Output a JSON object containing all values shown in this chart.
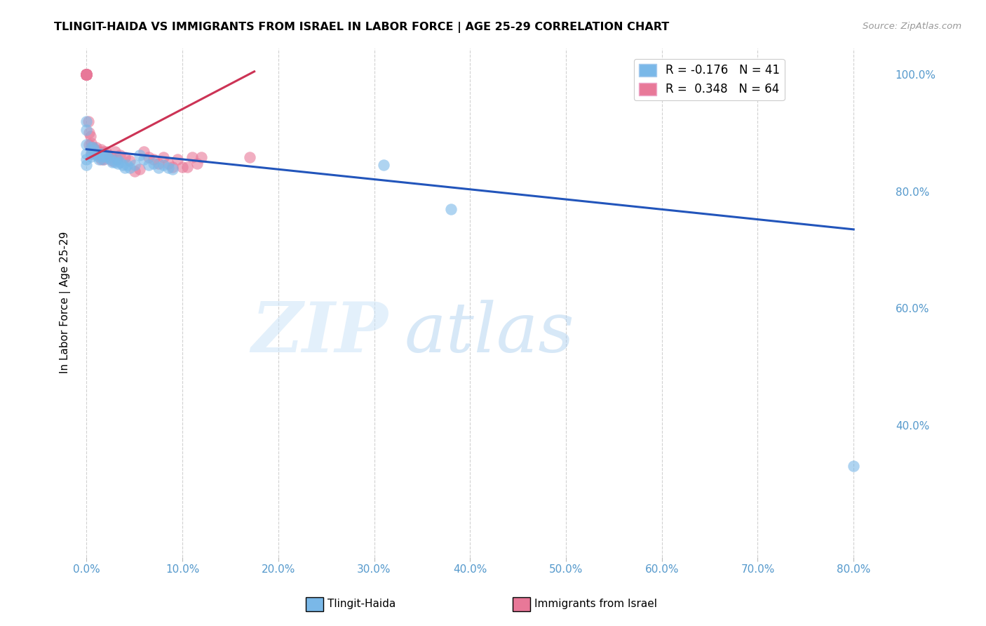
{
  "title": "TLINGIT-HAIDA VS IMMIGRANTS FROM ISRAEL IN LABOR FORCE | AGE 25-29 CORRELATION CHART",
  "source": "Source: ZipAtlas.com",
  "ylabel": "In Labor Force | Age 25-29",
  "tlingit_label": "Tlingit-Haida",
  "israel_label": "Immigrants from Israel",
  "legend_r_tlingit": "R = -0.176",
  "legend_n_tlingit": "N = 41",
  "legend_r_israel": "R =  0.348",
  "legend_n_israel": "N = 64",
  "tlingit_color": "#7ab8e8",
  "israel_color": "#e87898",
  "trendline_tlingit_color": "#2255bb",
  "trendline_israel_color": "#cc3355",
  "xlim": [
    -0.008,
    0.84
  ],
  "ylim": [
    0.175,
    1.045
  ],
  "x_ticks": [
    0.0,
    0.1,
    0.2,
    0.3,
    0.4,
    0.5,
    0.6,
    0.7,
    0.8
  ],
  "x_tick_labels": [
    "0.0%",
    "10.0%",
    "20.0%",
    "30.0%",
    "40.0%",
    "50.0%",
    "60.0%",
    "70.0%",
    "80.0%"
  ],
  "y_ticks": [
    0.4,
    0.6,
    0.8,
    1.0
  ],
  "y_tick_labels": [
    "40.0%",
    "60.0%",
    "80.0%",
    "100.0%"
  ],
  "ticks_color": "#5599cc",
  "grid_color": "#cccccc",
  "trendline_tlingit_x0": 0.0,
  "trendline_tlingit_y0": 0.872,
  "trendline_tlingit_x1": 0.8,
  "trendline_tlingit_y1": 0.735,
  "trendline_israel_x0": 0.0,
  "trendline_israel_y0": 0.855,
  "trendline_israel_x1": 0.175,
  "trendline_israel_y1": 1.005,
  "tlingit_x": [
    0.0,
    0.0,
    0.0,
    0.0,
    0.0,
    0.0,
    0.005,
    0.005,
    0.005,
    0.007,
    0.008,
    0.01,
    0.012,
    0.013,
    0.015,
    0.017,
    0.018,
    0.02,
    0.022,
    0.025,
    0.027,
    0.03,
    0.032,
    0.033,
    0.035,
    0.038,
    0.04,
    0.042,
    0.045,
    0.05,
    0.055,
    0.06,
    0.065,
    0.07,
    0.075,
    0.08,
    0.085,
    0.09,
    0.31,
    0.38,
    0.8
  ],
  "tlingit_y": [
    0.92,
    0.905,
    0.88,
    0.865,
    0.855,
    0.845,
    0.875,
    0.865,
    0.86,
    0.875,
    0.87,
    0.865,
    0.86,
    0.855,
    0.865,
    0.855,
    0.86,
    0.862,
    0.858,
    0.855,
    0.85,
    0.85,
    0.855,
    0.848,
    0.85,
    0.845,
    0.84,
    0.845,
    0.84,
    0.845,
    0.862,
    0.855,
    0.845,
    0.848,
    0.84,
    0.845,
    0.84,
    0.838,
    0.845,
    0.77,
    0.33
  ],
  "israel_x": [
    0.0,
    0.0,
    0.0,
    0.0,
    0.0,
    0.0,
    0.0,
    0.0,
    0.0,
    0.0,
    0.0,
    0.0,
    0.0,
    0.0,
    0.0,
    0.0,
    0.0,
    0.0,
    0.0,
    0.0,
    0.002,
    0.003,
    0.003,
    0.004,
    0.005,
    0.005,
    0.005,
    0.006,
    0.007,
    0.008,
    0.009,
    0.01,
    0.012,
    0.013,
    0.015,
    0.015,
    0.016,
    0.017,
    0.018,
    0.02,
    0.022,
    0.025,
    0.027,
    0.03,
    0.032,
    0.035,
    0.04,
    0.045,
    0.05,
    0.055,
    0.06,
    0.065,
    0.07,
    0.075,
    0.08,
    0.085,
    0.09,
    0.095,
    0.1,
    0.105,
    0.11,
    0.115,
    0.12,
    0.17
  ],
  "israel_y": [
    1.0,
    1.0,
    1.0,
    1.0,
    1.0,
    1.0,
    1.0,
    1.0,
    1.0,
    1.0,
    1.0,
    1.0,
    1.0,
    1.0,
    1.0,
    1.0,
    1.0,
    1.0,
    1.0,
    1.0,
    0.92,
    0.9,
    0.88,
    0.895,
    0.882,
    0.875,
    0.865,
    0.875,
    0.87,
    0.872,
    0.865,
    0.875,
    0.868,
    0.862,
    0.872,
    0.855,
    0.862,
    0.868,
    0.855,
    0.868,
    0.862,
    0.858,
    0.852,
    0.868,
    0.855,
    0.862,
    0.858,
    0.852,
    0.835,
    0.838,
    0.868,
    0.858,
    0.855,
    0.848,
    0.858,
    0.848,
    0.842,
    0.855,
    0.842,
    0.842,
    0.858,
    0.848,
    0.858,
    0.858
  ]
}
